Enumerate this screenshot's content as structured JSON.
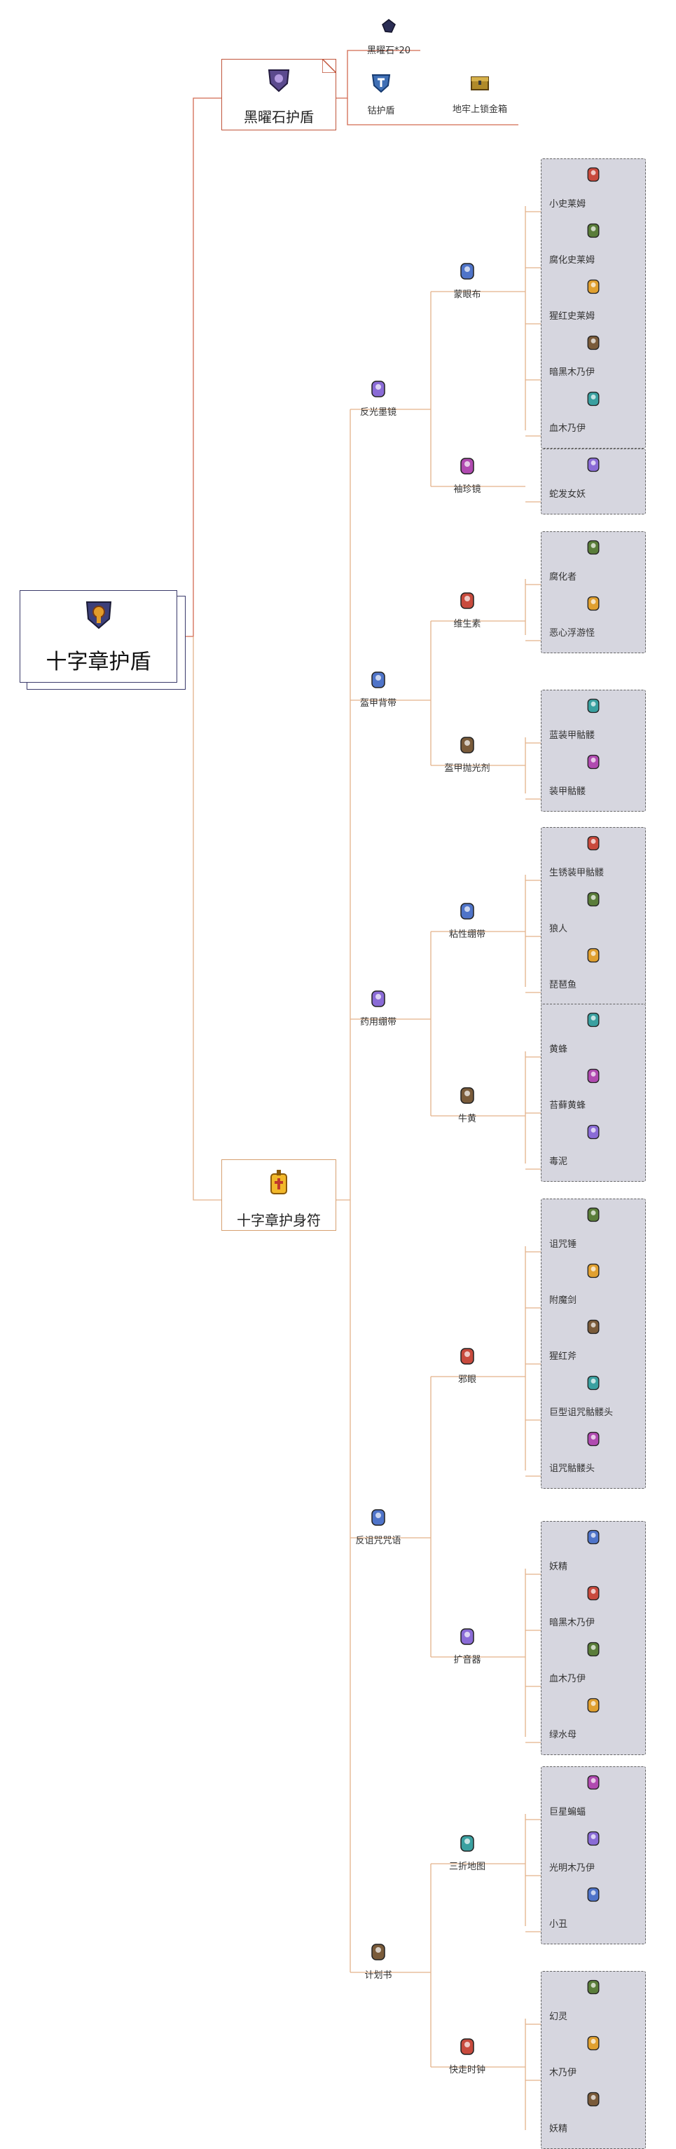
{
  "root": {
    "title": "十字章护盾",
    "icon": "cross-shield-icon"
  },
  "branch_obsidian": {
    "title": "黑曜石护盾",
    "icon": "obsidian-shield-icon",
    "top_item": {
      "label": "黑曜石*20",
      "icon": "obsidian-icon"
    },
    "child": {
      "label": "钴护盾",
      "icon": "cobalt-shield-icon"
    },
    "source": {
      "label": "地牢上锁金箱",
      "icon": "locked-gold-chest-icon"
    }
  },
  "branch_charm": {
    "title": "十字章护身符",
    "icon": "cross-necklace-icon",
    "accessories": [
      {
        "label": "反光墨镜",
        "icon": "reflective-shades-icon",
        "parts": [
          {
            "label": "蒙眼布",
            "icon": "blindfold-icon",
            "sources": [
              {
                "label": "小史莱姆",
                "icon": "baby-slime-icon"
              },
              {
                "label": "腐化史莱姆",
                "icon": "corrupt-slime-icon"
              },
              {
                "label": "猩红史莱姆",
                "icon": "crimslime-icon"
              },
              {
                "label": "暗黑木乃伊",
                "icon": "dark-mummy-icon"
              },
              {
                "label": "血木乃伊",
                "icon": "blood-mummy-icon"
              }
            ]
          },
          {
            "label": "袖珍镜",
            "icon": "pocket-mirror-icon",
            "sources": [
              {
                "label": "蛇发女妖",
                "icon": "medusa-icon"
              }
            ]
          }
        ]
      },
      {
        "label": "盔甲背带",
        "icon": "armor-bracing-icon",
        "parts": [
          {
            "label": "维生素",
            "icon": "vitamins-icon",
            "sources": [
              {
                "label": "腐化者",
                "icon": "corruptor-icon"
              },
              {
                "label": "恶心浮游怪",
                "icon": "floaty-gross-icon"
              }
            ]
          },
          {
            "label": "盔甲抛光剂",
            "icon": "armor-polish-icon",
            "sources": [
              {
                "label": "蓝装甲骷髅",
                "icon": "blue-armored-bones-icon"
              },
              {
                "label": "装甲骷髅",
                "icon": "armored-skeleton-icon"
              }
            ]
          }
        ]
      },
      {
        "label": "药用绷带",
        "icon": "medicated-bandage-icon",
        "parts": [
          {
            "label": "粘性绷带",
            "icon": "adhesive-bandage-icon",
            "sources": [
              {
                "label": "生锈装甲骷髅",
                "icon": "rusty-armored-bones-icon"
              },
              {
                "label": "狼人",
                "icon": "werewolf-icon"
              },
              {
                "label": "琵琶鱼",
                "icon": "angler-fish-icon"
              }
            ]
          },
          {
            "label": "牛黄",
            "icon": "bezoar-icon",
            "sources": [
              {
                "label": "黄蜂",
                "icon": "hornet-icon"
              },
              {
                "label": "苔藓黄蜂",
                "icon": "moss-hornet-icon"
              },
              {
                "label": "毒泥",
                "icon": "toxic-sludge-icon"
              }
            ]
          }
        ]
      },
      {
        "label": "反诅咒咒语",
        "icon": "countercurse-mantra-icon",
        "parts": [
          {
            "label": "邪眼",
            "icon": "evil-eye-icon",
            "sources": [
              {
                "label": "诅咒锤",
                "icon": "cursed-hammer-icon"
              },
              {
                "label": "附魔剑",
                "icon": "enchanted-sword-icon"
              },
              {
                "label": "猩红斧",
                "icon": "crimson-axe-icon"
              },
              {
                "label": "巨型诅咒骷髅头",
                "icon": "giant-cursed-skull-icon"
              },
              {
                "label": "诅咒骷髅头",
                "icon": "cursed-skull-icon"
              }
            ]
          },
          {
            "label": "扩音器",
            "icon": "megaphone-icon",
            "sources": [
              {
                "label": "妖精",
                "icon": "pixie-icon"
              },
              {
                "label": "暗黑木乃伊",
                "icon": "dark-mummy-icon"
              },
              {
                "label": "血木乃伊",
                "icon": "blood-mummy-icon"
              },
              {
                "label": "绿水母",
                "icon": "green-jellyfish-icon"
              }
            ]
          }
        ]
      },
      {
        "label": "计划书",
        "icon": "the-plan-icon",
        "parts": [
          {
            "label": "三折地图",
            "icon": "trifold-map-icon",
            "sources": [
              {
                "label": "巨星蝙蝠",
                "icon": "giant-bat-icon"
              },
              {
                "label": "光明木乃伊",
                "icon": "light-mummy-icon"
              },
              {
                "label": "小丑",
                "icon": "clown-icon"
              }
            ]
          },
          {
            "label": "快走时钟",
            "icon": "fast-clock-icon",
            "sources": [
              {
                "label": "幻灵",
                "icon": "wraith-icon"
              },
              {
                "label": "木乃伊",
                "icon": "mummy-icon"
              },
              {
                "label": "妖精",
                "icon": "pixie-icon"
              }
            ]
          }
        ]
      }
    ]
  },
  "colors": {
    "line": "#e3b28a",
    "line_red": "#d26a52",
    "group_bg": "#d6d6df",
    "group_border": "#666666",
    "root_border": "#3a3a6a"
  }
}
